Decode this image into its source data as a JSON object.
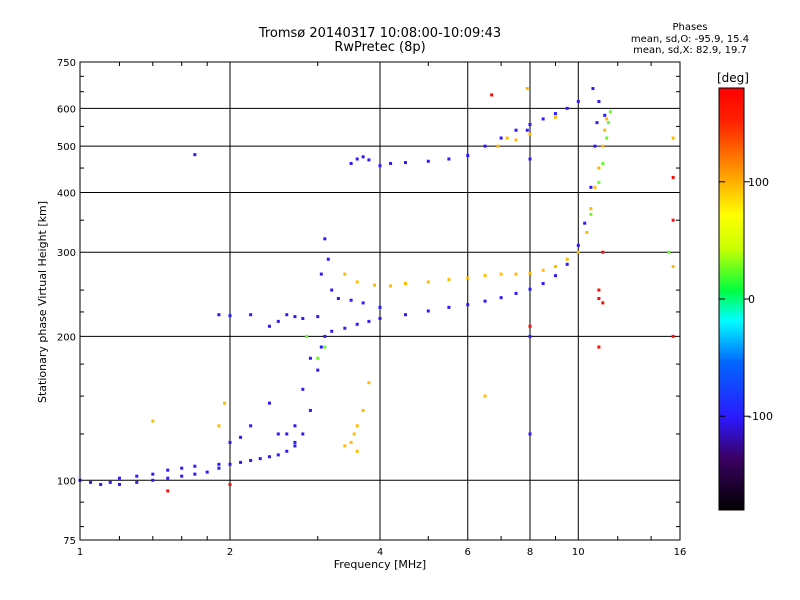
{
  "header": {
    "title": "Tromsø 20140317 10:08:00-10:09:43",
    "subtitle": "RwPretec (8p)"
  },
  "stats": {
    "heading": "Phases",
    "line_o": "mean, sd,O: -95.9, 15.4",
    "line_x": "mean, sd,X: 82.9, 19.7"
  },
  "chart_data": {
    "type": "scatter",
    "title": "Tromsø 20140317 10:08:00-10:09:43",
    "subtitle": "RwPretec (8p)",
    "xlabel": "Frequency [MHz]",
    "ylabel": "Stationary phase Virtual Height [km]",
    "xscale": "log",
    "yscale": "log",
    "xlim": [
      1,
      16
    ],
    "ylim": [
      75,
      750
    ],
    "xticks": [
      1,
      2,
      4,
      6,
      8,
      10,
      16
    ],
    "yticks": [
      75,
      100,
      200,
      300,
      400,
      500,
      600,
      750
    ],
    "grid": true,
    "colorbar": {
      "label": "[deg]",
      "range": [
        -180,
        180
      ],
      "ticks": [
        100,
        0,
        -100
      ],
      "colors": [
        "#000000",
        "#3a0060",
        "#2a1aff",
        "#0066ff",
        "#00ffff",
        "#00ff40",
        "#c8ff00",
        "#ffff00",
        "#ff9900",
        "#ff2200",
        "#ff0000"
      ]
    },
    "series": [
      {
        "phase": -100,
        "points": [
          [
            1.0,
            100
          ],
          [
            1.05,
            99
          ],
          [
            1.1,
            98
          ],
          [
            1.15,
            99
          ],
          [
            1.2,
            98
          ],
          [
            1.3,
            99
          ],
          [
            1.4,
            100
          ],
          [
            1.5,
            101
          ],
          [
            1.6,
            102
          ],
          [
            1.7,
            103
          ],
          [
            1.8,
            104
          ],
          [
            1.9,
            106
          ],
          [
            2.0,
            108
          ],
          [
            2.1,
            109
          ],
          [
            2.2,
            110
          ],
          [
            2.3,
            111
          ],
          [
            2.4,
            112
          ],
          [
            2.5,
            113
          ],
          [
            2.6,
            115
          ],
          [
            2.7,
            118
          ],
          [
            2.8,
            125
          ],
          [
            2.9,
            140
          ],
          [
            3.0,
            170
          ],
          [
            3.05,
            190
          ],
          [
            3.1,
            200
          ],
          [
            3.2,
            205
          ],
          [
            3.4,
            208
          ],
          [
            3.6,
            212
          ],
          [
            3.8,
            215
          ],
          [
            4.0,
            218
          ],
          [
            4.5,
            222
          ],
          [
            5.0,
            226
          ],
          [
            5.5,
            230
          ],
          [
            6.0,
            233
          ],
          [
            6.5,
            237
          ],
          [
            7.0,
            241
          ],
          [
            7.5,
            246
          ],
          [
            8.0,
            251
          ],
          [
            8.5,
            258
          ],
          [
            9.0,
            268
          ],
          [
            9.5,
            283
          ],
          [
            10.0,
            310
          ],
          [
            10.3,
            345
          ],
          [
            10.6,
            410
          ],
          [
            10.8,
            500
          ],
          [
            10.9,
            560
          ],
          [
            11.0,
            620
          ],
          [
            1.2,
            101
          ],
          [
            1.3,
            102
          ],
          [
            1.4,
            103
          ],
          [
            1.5,
            105
          ],
          [
            1.6,
            106
          ],
          [
            1.7,
            107
          ],
          [
            1.9,
            108
          ],
          [
            2.0,
            120
          ],
          [
            2.1,
            123
          ],
          [
            2.2,
            130
          ],
          [
            2.4,
            145
          ],
          [
            2.7,
            130
          ],
          [
            2.8,
            155
          ],
          [
            2.9,
            180
          ],
          [
            3.0,
            220
          ],
          [
            3.05,
            270
          ],
          [
            3.1,
            320
          ],
          [
            3.15,
            290
          ],
          [
            3.2,
            250
          ],
          [
            3.3,
            240
          ],
          [
            3.5,
            238
          ],
          [
            3.7,
            235
          ],
          [
            4.0,
            230
          ],
          [
            1.9,
            222
          ],
          [
            2.0,
            221
          ],
          [
            2.2,
            222
          ],
          [
            2.4,
            210
          ],
          [
            2.5,
            215
          ],
          [
            2.6,
            222
          ],
          [
            2.7,
            220
          ],
          [
            2.8,
            218
          ],
          [
            3.5,
            460
          ],
          [
            3.6,
            470
          ],
          [
            3.7,
            475
          ],
          [
            3.8,
            468
          ],
          [
            4.0,
            455
          ],
          [
            4.2,
            460
          ],
          [
            4.5,
            462
          ],
          [
            5.0,
            465
          ],
          [
            5.5,
            470
          ],
          [
            6.0,
            478
          ],
          [
            6.5,
            500
          ],
          [
            7.0,
            520
          ],
          [
            7.5,
            540
          ],
          [
            8.0,
            555
          ],
          [
            8.5,
            570
          ],
          [
            9.0,
            585
          ],
          [
            9.5,
            600
          ],
          [
            10.0,
            620
          ],
          [
            2.5,
            125
          ],
          [
            2.6,
            125
          ],
          [
            2.7,
            120
          ],
          [
            1.7,
            480
          ],
          [
            7.9,
            540
          ],
          [
            8.0,
            470
          ],
          [
            8.0,
            200
          ],
          [
            8.0,
            125
          ],
          [
            10.7,
            660
          ],
          [
            11.3,
            580
          ]
        ]
      },
      {
        "phase": 20,
        "points": [
          [
            2.85,
            200
          ],
          [
            3.0,
            180
          ],
          [
            3.1,
            190
          ],
          [
            10.6,
            360
          ],
          [
            11.0,
            420
          ],
          [
            11.2,
            460
          ],
          [
            11.4,
            520
          ],
          [
            11.5,
            560
          ],
          [
            11.6,
            590
          ],
          [
            15.2,
            300
          ]
        ]
      },
      {
        "phase": 100,
        "points": [
          [
            3.4,
            118
          ],
          [
            3.5,
            120
          ],
          [
            3.55,
            125
          ],
          [
            3.6,
            130
          ],
          [
            3.7,
            140
          ],
          [
            3.8,
            160
          ],
          [
            3.6,
            260
          ],
          [
            3.9,
            256
          ],
          [
            4.2,
            255
          ],
          [
            4.5,
            258
          ],
          [
            5.0,
            260
          ],
          [
            5.5,
            263
          ],
          [
            6.0,
            265
          ],
          [
            6.5,
            268
          ],
          [
            7.0,
            270
          ],
          [
            7.5,
            270
          ],
          [
            8.0,
            271
          ],
          [
            8.5,
            275
          ],
          [
            9.0,
            280
          ],
          [
            9.5,
            290
          ],
          [
            10.0,
            300
          ],
          [
            10.4,
            330
          ],
          [
            10.6,
            370
          ],
          [
            10.8,
            410
          ],
          [
            11.0,
            450
          ],
          [
            11.2,
            500
          ],
          [
            11.3,
            540
          ],
          [
            11.4,
            570
          ],
          [
            3.6,
            115
          ],
          [
            3.4,
            270
          ],
          [
            1.4,
            133
          ],
          [
            6.9,
            500
          ],
          [
            7.2,
            520
          ],
          [
            7.5,
            515
          ],
          [
            8.0,
            530
          ],
          [
            9.0,
            575
          ],
          [
            7.9,
            660
          ],
          [
            6.5,
            150
          ],
          [
            1.9,
            130
          ],
          [
            1.95,
            145
          ],
          [
            15.5,
            520
          ],
          [
            15.5,
            280
          ]
        ]
      },
      {
        "phase": 170,
        "points": [
          [
            6.7,
            640
          ],
          [
            8.0,
            210
          ],
          [
            11.2,
            300
          ],
          [
            11.0,
            250
          ],
          [
            11.0,
            190
          ],
          [
            11.2,
            235
          ],
          [
            1.5,
            95
          ],
          [
            2.0,
            98
          ],
          [
            15.5,
            430
          ],
          [
            15.5,
            350
          ],
          [
            15.5,
            200
          ],
          [
            11.0,
            240
          ]
        ]
      }
    ]
  }
}
